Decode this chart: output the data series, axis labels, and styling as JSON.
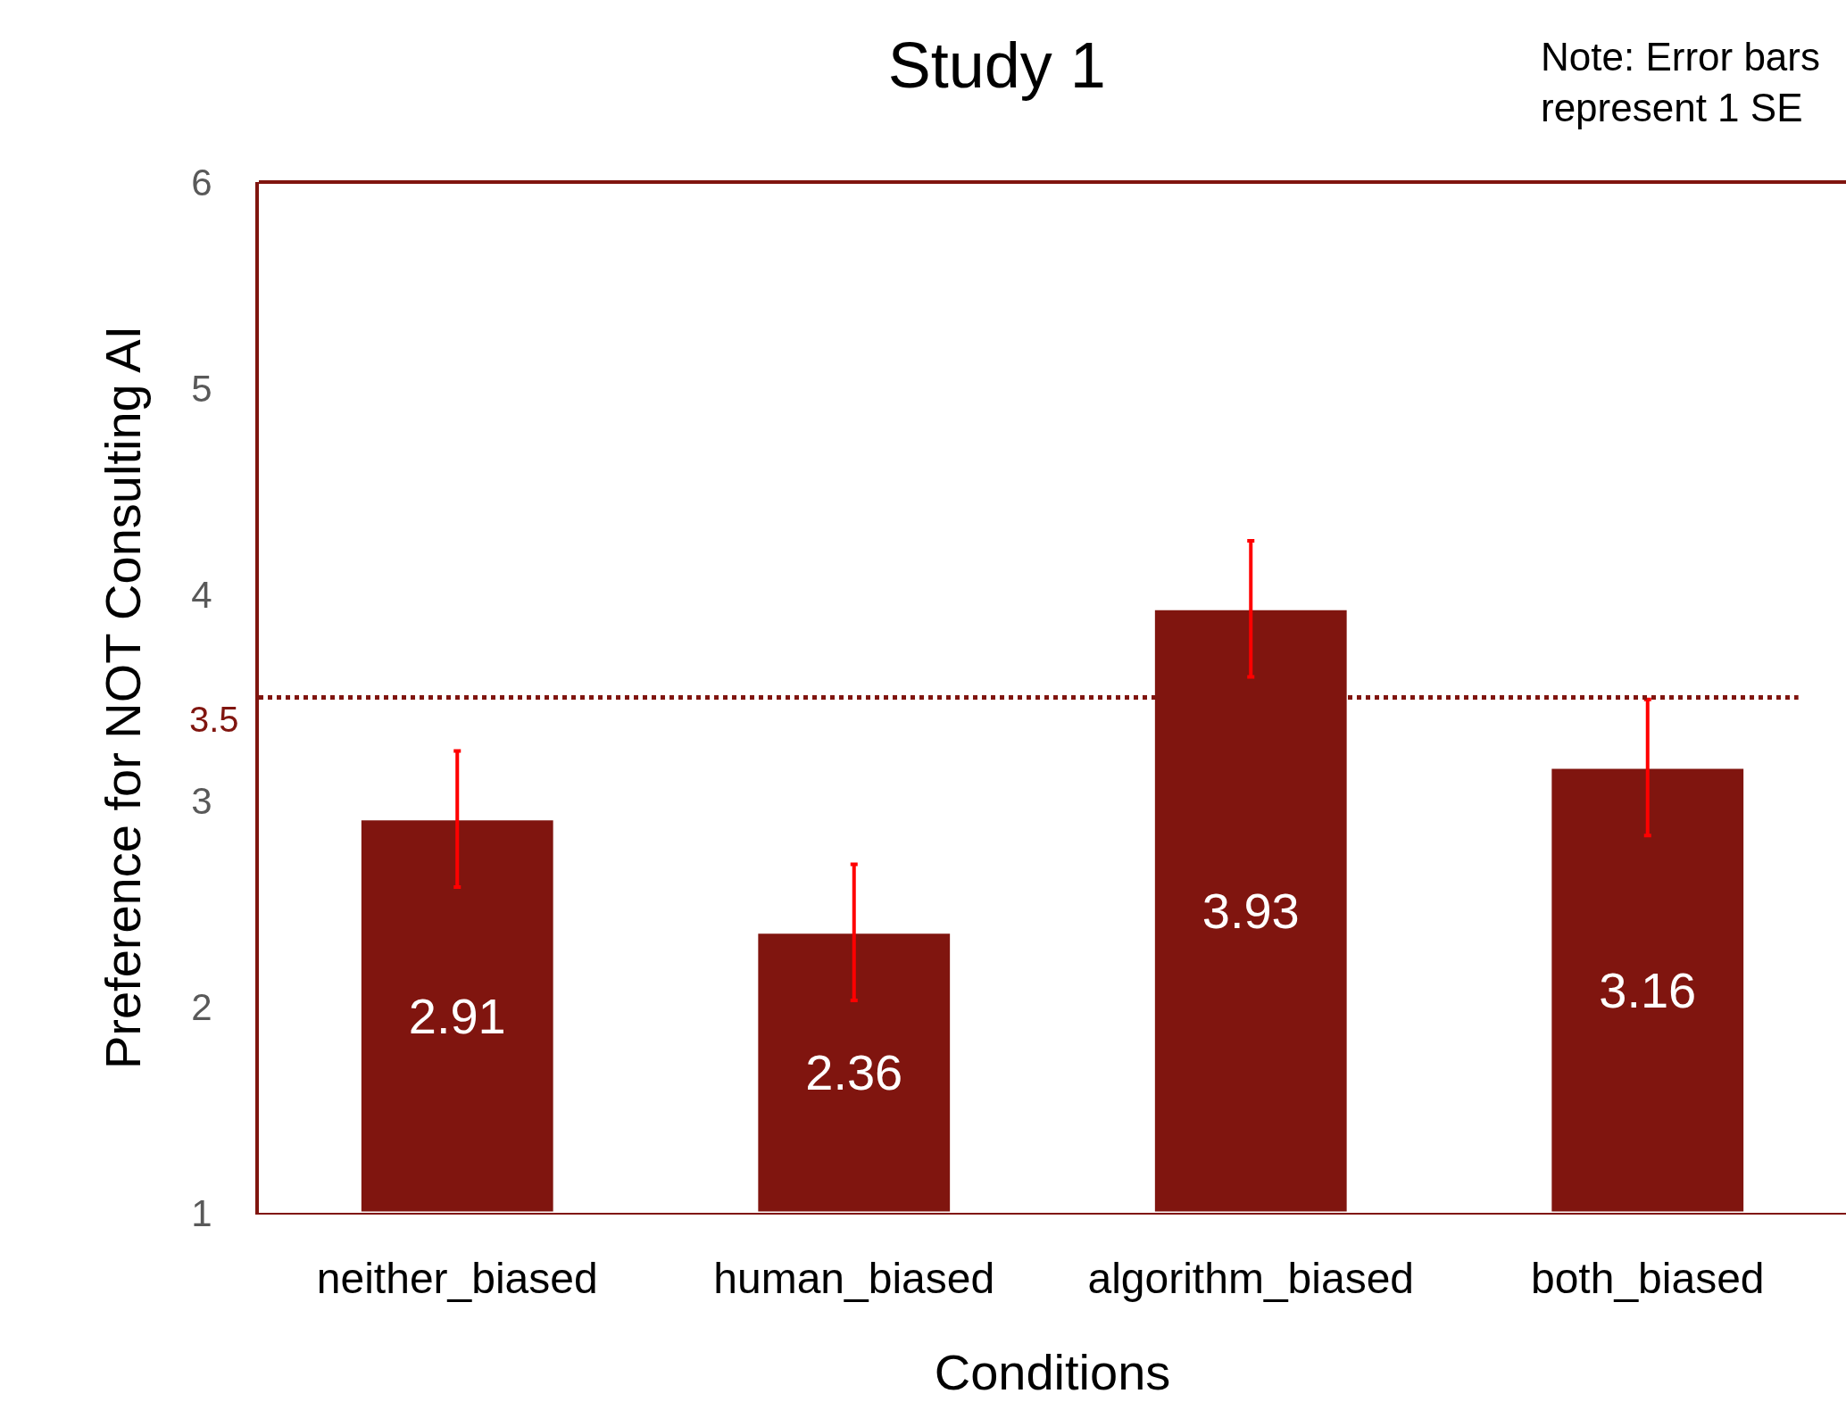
{
  "chart_data": {
    "type": "bar",
    "title": "Study 1",
    "xlabel": "Conditions",
    "ylabel": "Preference for NOT Consulting AI",
    "categories": [
      "neither_biased",
      "human_biased",
      "algorithm_biased",
      "both_biased"
    ],
    "values": [
      2.91,
      2.36,
      3.93,
      3.16
    ],
    "color": "#80150f",
    "data_labels": true,
    "errors": [
      0.33,
      0.33,
      0.33,
      0.33
    ],
    "ylim": [
      1,
      6
    ],
    "yticks": [
      1,
      2,
      3,
      4,
      5,
      6
    ],
    "grid": false,
    "legend": false,
    "ref_lines": [
      {
        "axis": "y",
        "value": 3.5,
        "label": "3.5",
        "color": "#80150f",
        "line_style": "dotted"
      }
    ],
    "annotations": [
      "Note: Error bars\nrepresent 1 SE"
    ]
  }
}
